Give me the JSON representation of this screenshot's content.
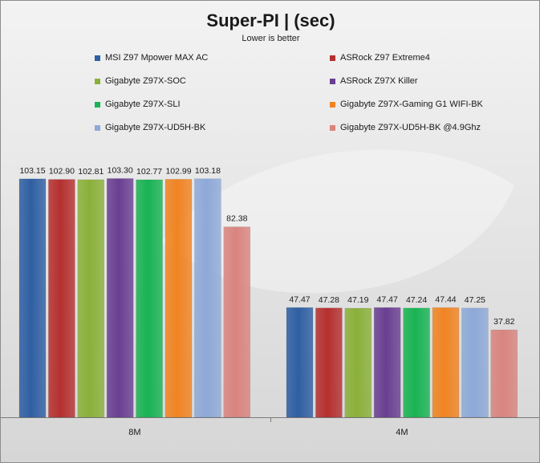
{
  "chart_data": {
    "type": "bar",
    "title": "Super-PI | (sec)",
    "subtitle": "Lower is better",
    "categories": [
      "8M",
      "4M"
    ],
    "ylim": [
      0,
      125
    ],
    "grid": false,
    "legend_position": "top",
    "series": [
      {
        "name": "MSI Z97 Mpower MAX AC",
        "color": "#2f5fa3",
        "values": [
          103.15,
          47.47
        ]
      },
      {
        "name": "ASRock Z97 Extreme4",
        "color": "#b5302f",
        "values": [
          102.9,
          47.28
        ]
      },
      {
        "name": "Gigabyte Z97X-SOC",
        "color": "#8bb03a",
        "values": [
          102.81,
          47.19
        ]
      },
      {
        "name": "ASRock Z97X Killer",
        "color": "#6a3f92",
        "values": [
          103.3,
          47.47
        ]
      },
      {
        "name": "Gigabyte Z97X-SLI",
        "color": "#19b354",
        "values": [
          102.77,
          47.24
        ]
      },
      {
        "name": "Gigabyte Z97X-Gaming G1 WIFI-BK",
        "color": "#f08422",
        "values": [
          102.99,
          47.44
        ]
      },
      {
        "name": "Gigabyte Z97X-UD5H-BK",
        "color": "#8ea9d8",
        "values": [
          103.18,
          47.25
        ]
      },
      {
        "name": "Gigabyte Z97X-UD5H-BK @4.9Ghz",
        "color": "#d9847f",
        "values": [
          82.38,
          37.82
        ]
      }
    ],
    "value_labels": [
      [
        "103.15",
        "102.90",
        "102.81",
        "103.30",
        "102.77",
        "102.99",
        "103.18",
        "82.38"
      ],
      [
        "47.47",
        "47.28",
        "47.19",
        "47.47",
        "47.24",
        "47.44",
        "47.25",
        "37.82"
      ]
    ]
  }
}
